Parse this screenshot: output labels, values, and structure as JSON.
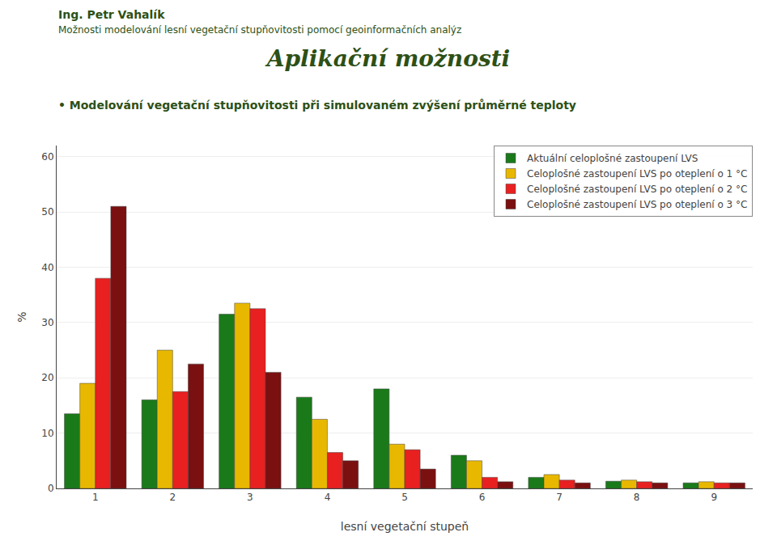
{
  "chart_data": {
    "type": "bar",
    "title": "Aplikační možnosti",
    "subtitle": "• Modelování vegetační stupňovitosti při simulovaném zvýšení průměrné teploty",
    "annotations": [
      "Ing. Petr Vahalík",
      "Možnosti modelování lesní vegetační stupňovitosti pomocí geoinformačních analýz"
    ],
    "xlabel": "lesní vegetační stupeň",
    "ylabel": "%",
    "categories": [
      1,
      2,
      3,
      4,
      5,
      6,
      7,
      8,
      9
    ],
    "series": [
      {
        "name": "Aktuální celoplošné zastoupení LVS",
        "color": "#1a7a1a",
        "values": [
          13.5,
          16.0,
          31.5,
          16.5,
          18.0,
          6.0,
          2.0,
          1.3,
          1.0
        ]
      },
      {
        "name": "Celoplošné zastoupení LVS po oteplení o 1 °C",
        "color": "#e8b800",
        "values": [
          19.0,
          25.0,
          33.5,
          12.5,
          8.0,
          5.0,
          2.5,
          1.5,
          1.2
        ]
      },
      {
        "name": "Celoplošné zastoupení LVS po oteplení o 2 °C",
        "color": "#e82020",
        "values": [
          38.0,
          17.5,
          32.5,
          6.5,
          7.0,
          2.0,
          1.5,
          1.2,
          1.0
        ]
      },
      {
        "name": "Celoplošné zastoupení LVS po oteplení o 3 °C",
        "color": "#7a1010",
        "values": [
          51.0,
          22.5,
          21.0,
          5.0,
          3.5,
          1.2,
          1.0,
          1.0,
          1.0
        ]
      }
    ],
    "ylim": [
      0,
      62
    ],
    "yticks": [
      0,
      10,
      20,
      30,
      40,
      50,
      60
    ],
    "grid": true,
    "legend": "upper right"
  }
}
